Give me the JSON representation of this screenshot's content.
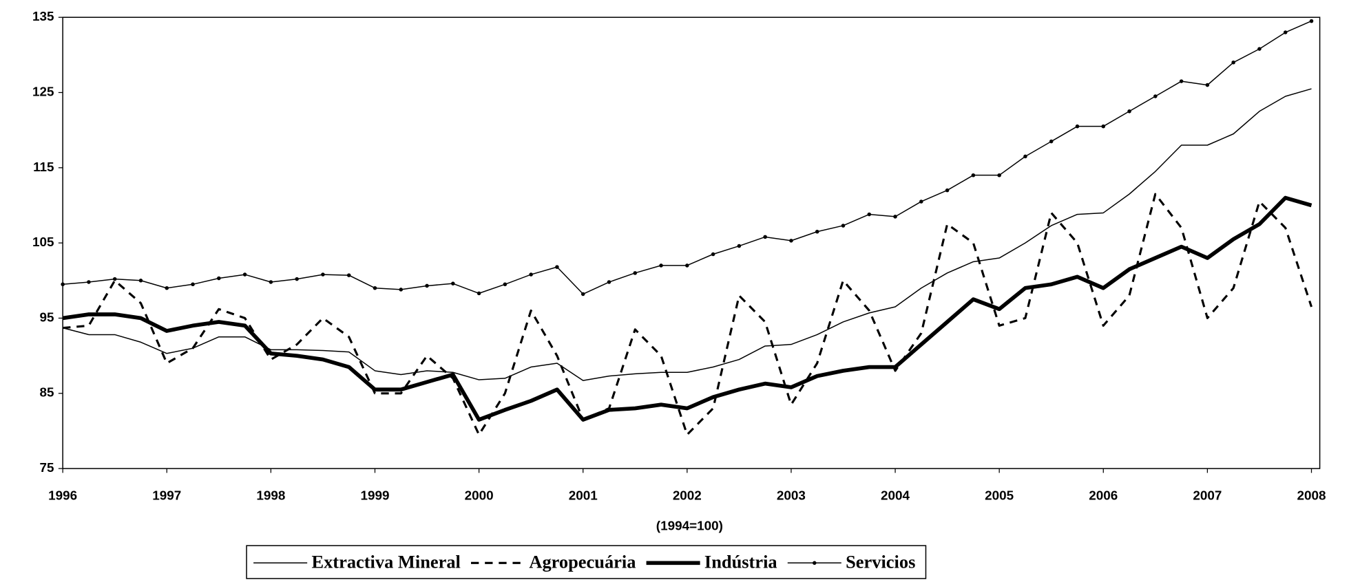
{
  "chart_data": {
    "type": "line",
    "x_label": "(1994=100)",
    "x": [
      1996,
      1996.25,
      1996.5,
      1996.75,
      1997,
      1997.25,
      1997.5,
      1997.75,
      1998,
      1998.25,
      1998.5,
      1998.75,
      1999,
      1999.25,
      1999.5,
      1999.75,
      2000,
      2000.25,
      2000.5,
      2000.75,
      2001,
      2001.25,
      2001.5,
      2001.75,
      2002,
      2002.25,
      2002.5,
      2002.75,
      2003,
      2003.25,
      2003.5,
      2003.75,
      2004,
      2004.25,
      2004.5,
      2004.75,
      2005,
      2005.25,
      2005.5,
      2005.75,
      2006,
      2006.25,
      2006.5,
      2006.75,
      2007,
      2007.25,
      2007.5,
      2007.75,
      2008
    ],
    "series": [
      {
        "name": "Extractiva Mineral",
        "color": "#000000",
        "line_style": "thin",
        "values": [
          93.7,
          92.8,
          92.8,
          91.8,
          90.3,
          91,
          92.5,
          92.5,
          90.8,
          90.8,
          90.7,
          90.5,
          88,
          87.5,
          88,
          87.8,
          86.8,
          87,
          88.5,
          89,
          86.7,
          87.3,
          87.6,
          87.8,
          87.8,
          88.5,
          89.5,
          91.3,
          91.5,
          92.8,
          94.5,
          95.7,
          96.5,
          99,
          101,
          102.5,
          103,
          105,
          107.3,
          108.8,
          109,
          111.5,
          114.5,
          118,
          118,
          119.5,
          122.5,
          124.5,
          125.5
        ]
      },
      {
        "name": "Agropecuária",
        "color": "#000000",
        "line_style": "dashed",
        "values": [
          93.7,
          94,
          100,
          97,
          89,
          91,
          96.2,
          95,
          89.5,
          91.5,
          95,
          92.5,
          85,
          85,
          90,
          87,
          79.5,
          85,
          96,
          90,
          81.5,
          83,
          93.5,
          90,
          79.5,
          83,
          98,
          94.5,
          83.5,
          89,
          100,
          96,
          88,
          93,
          107.5,
          105,
          94,
          95,
          109,
          105,
          94,
          98,
          111.5,
          107,
          95,
          99,
          110.5,
          107,
          96.5
        ]
      },
      {
        "name": "Indústria",
        "color": "#000000",
        "line_style": "thick",
        "values": [
          95,
          95.5,
          95.5,
          95,
          93.3,
          94,
          94.5,
          94,
          90.3,
          90,
          89.5,
          88.5,
          85.5,
          85.5,
          86.5,
          87.5,
          81.5,
          82.8,
          84,
          85.5,
          81.5,
          82.8,
          83,
          83.5,
          83,
          84.5,
          85.5,
          86.3,
          85.8,
          87.3,
          88,
          88.5,
          88.5,
          91.5,
          94.5,
          97.5,
          96.2,
          99,
          99.5,
          100.5,
          99,
          101.5,
          103,
          104.5,
          103,
          105.5,
          107.5,
          111,
          110
        ]
      },
      {
        "name": "Servicios",
        "color": "#000000",
        "line_style": "markers",
        "values": [
          99.5,
          99.8,
          100.2,
          100,
          99,
          99.5,
          100.3,
          100.8,
          99.8,
          100.2,
          100.8,
          100.7,
          99,
          98.8,
          99.3,
          99.6,
          98.3,
          99.5,
          100.8,
          101.8,
          98.2,
          99.8,
          101,
          102,
          102,
          103.5,
          104.6,
          105.8,
          105.3,
          106.5,
          107.3,
          108.8,
          108.5,
          110.5,
          112,
          114,
          114,
          116.5,
          118.5,
          120.5,
          120.5,
          122.5,
          124.5,
          126.5,
          126,
          129,
          130.8,
          133,
          134.5
        ]
      }
    ],
    "xlim": [
      1996,
      2008.08
    ],
    "xticks": [
      1996,
      1997,
      1998,
      1999,
      2000,
      2001,
      2002,
      2003,
      2004,
      2005,
      2006,
      2007,
      2008
    ],
    "ylim": [
      75,
      135
    ],
    "yticks": [
      75,
      85,
      95,
      105,
      115,
      125,
      135
    ],
    "grid": false,
    "legend": "bottom"
  }
}
